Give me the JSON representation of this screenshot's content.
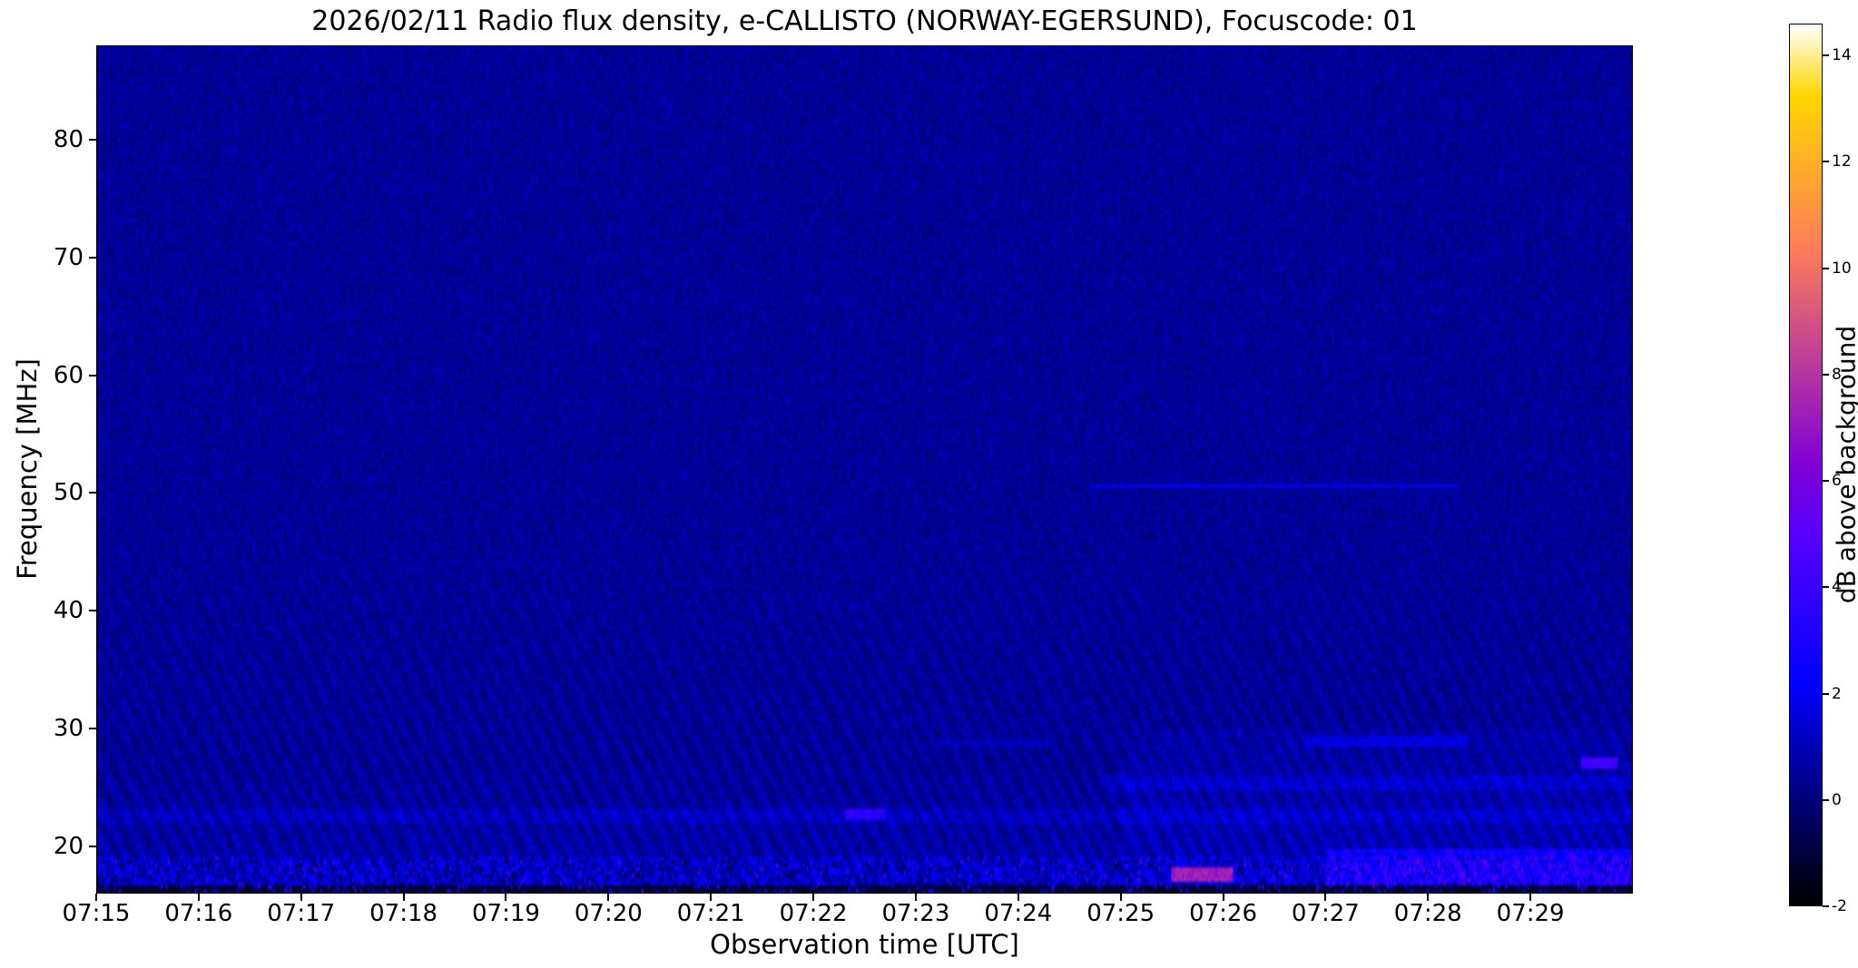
{
  "chart_data": {
    "type": "heatmap",
    "title": "2026/02/11  Radio flux density, e-CALLISTO (NORWAY-EGERSUND), Focuscode: 01",
    "xlabel": "Observation time [UTC]",
    "ylabel": "Frequency [MHz]",
    "colorbar_label": "dB above background",
    "colormap": "gnuplot2",
    "x_start": "07:15",
    "x_end": "07:30",
    "x_span_minutes": 15,
    "x_ticks": [
      {
        "label": "07:15",
        "minute": 0
      },
      {
        "label": "07:16",
        "minute": 1
      },
      {
        "label": "07:17",
        "minute": 2
      },
      {
        "label": "07:18",
        "minute": 3
      },
      {
        "label": "07:19",
        "minute": 4
      },
      {
        "label": "07:20",
        "minute": 5
      },
      {
        "label": "07:21",
        "minute": 6
      },
      {
        "label": "07:22",
        "minute": 7
      },
      {
        "label": "07:23",
        "minute": 8
      },
      {
        "label": "07:24",
        "minute": 9
      },
      {
        "label": "07:25",
        "minute": 10
      },
      {
        "label": "07:26",
        "minute": 11
      },
      {
        "label": "07:27",
        "minute": 12
      },
      {
        "label": "07:28",
        "minute": 13
      },
      {
        "label": "07:29",
        "minute": 14
      }
    ],
    "y_range": [
      16,
      88
    ],
    "y_ticks": [
      80,
      70,
      60,
      50,
      40,
      30,
      20
    ],
    "value_range": [
      -2,
      14.6
    ],
    "colorbar_ticks": [
      14,
      12,
      10,
      8,
      6,
      4,
      2,
      0,
      -2
    ],
    "texture": {
      "background_db": 0.45,
      "noise_amplitude_db": 0.55,
      "ripple_max_freq_mhz": 52,
      "ripple_amplitude_db": 0.5,
      "low_band_top_mhz": 27,
      "low_band_gain_db_per_mhz": 0.035,
      "rfi_band_top_mhz": 19,
      "rfi_band_extra_db": 1.6,
      "edge_band_top_mhz": 16.7,
      "edge_band_base_db": -1.1
    },
    "features": [
      {
        "name": "faint-rf-line-50.5MHz",
        "t": [
          9.7,
          13.3
        ],
        "f": [
          50.3,
          50.9
        ],
        "db": 1.7
      },
      {
        "name": "short-burst-22.5MHz-0722",
        "t": [
          7.3,
          7.7
        ],
        "f": [
          22.1,
          23.1
        ],
        "db": 3.0
      },
      {
        "name": "bright-pink-burst-17.5MHz-0725",
        "t": [
          10.5,
          11.1
        ],
        "f": [
          16.9,
          18.2
        ],
        "db": 7.0
      },
      {
        "name": "bright-speck-27MHz-right-edge",
        "t": [
          14.5,
          14.85
        ],
        "f": [
          26.4,
          27.4
        ],
        "db": 4.0
      },
      {
        "name": "elevated-band-22-23MHz",
        "t": [
          0,
          15
        ],
        "f": [
          21.8,
          23.2
        ],
        "db": 0.5,
        "add": true
      },
      {
        "name": "elevated-band-25MHz-right-half",
        "t": [
          9.8,
          15
        ],
        "f": [
          24.6,
          25.8
        ],
        "db": 0.6,
        "add": true
      },
      {
        "name": "streak-29MHz-0727",
        "t": [
          11.8,
          13.4
        ],
        "f": [
          28.5,
          29.3
        ],
        "db": 1.4
      },
      {
        "name": "streak-29MHz-0723",
        "t": [
          8.2,
          9.3
        ],
        "f": [
          28.4,
          29.0
        ],
        "db": 1.0
      },
      {
        "name": "bottom-activity-right-side",
        "t": [
          12.0,
          15
        ],
        "f": [
          16.6,
          19.6
        ],
        "db": 1.5,
        "add": true
      },
      {
        "name": "enhanced-noise-right-third-below-30MHz",
        "t": [
          10.0,
          15
        ],
        "f": [
          16.6,
          30.0
        ],
        "db": 0.25,
        "add": true
      }
    ]
  }
}
